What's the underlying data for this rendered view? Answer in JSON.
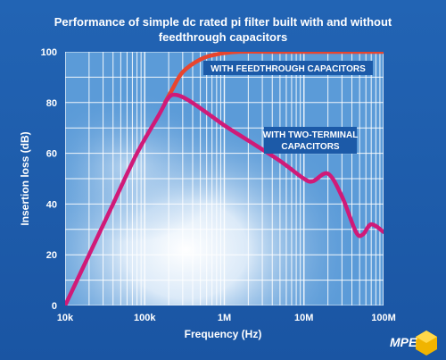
{
  "chart_data": {
    "type": "line",
    "title_line1": "Performance of simple dc rated pi filter built with and without",
    "title_line2": "feedthrough capacitors",
    "xlabel": "Frequency (Hz)",
    "ylabel": "Insertion loss (dB)",
    "xscale": "log",
    "xlim": [
      10000,
      100000000
    ],
    "ylim": [
      0,
      100
    ],
    "xticks": [
      {
        "value": 10000,
        "label": "10k"
      },
      {
        "value": 100000,
        "label": "100k"
      },
      {
        "value": 1000000,
        "label": "1M"
      },
      {
        "value": 10000000,
        "label": "10M"
      },
      {
        "value": 100000000,
        "label": "100M"
      }
    ],
    "yticks": [
      0,
      20,
      40,
      60,
      80,
      100
    ],
    "grid": true,
    "series": [
      {
        "name": "WITH FEEDTHROUGH CAPACITORS",
        "color": "#e8452e",
        "x": [
          180000,
          220000,
          300000,
          500000,
          800000,
          1500000,
          5000000,
          20000000,
          100000000
        ],
        "y": [
          80,
          85,
          92,
          97,
          99,
          100,
          100,
          100,
          100
        ]
      },
      {
        "name": "WITH TWO-TERMINAL CAPACITORS",
        "color": "#d01a78",
        "x": [
          10000,
          20000,
          40000,
          80000,
          150000,
          200000,
          250000,
          350000,
          600000,
          1000000,
          2000000,
          5000000,
          10000000,
          13000000,
          20000000,
          30000000,
          45000000,
          55000000,
          70000000,
          100000000
        ],
        "y": [
          0,
          20,
          40,
          60,
          75,
          82,
          83,
          81,
          76,
          71,
          65,
          57,
          50,
          49,
          52,
          43,
          29,
          28,
          32,
          29
        ]
      }
    ],
    "annotations": [
      {
        "text": "WITH FEEDTHROUGH CAPACITORS",
        "series": 0
      },
      {
        "text_line1": "WITH TWO-TERMINAL",
        "text_line2": "CAPACITORS",
        "series": 1
      }
    ]
  },
  "logo": {
    "text": "MPE"
  },
  "colors": {
    "background": "#1c5aa8",
    "plot_bg": "#5b9bd8",
    "grid": "#ffffff",
    "feedthrough": "#e8452e",
    "two_terminal": "#d01a78"
  }
}
